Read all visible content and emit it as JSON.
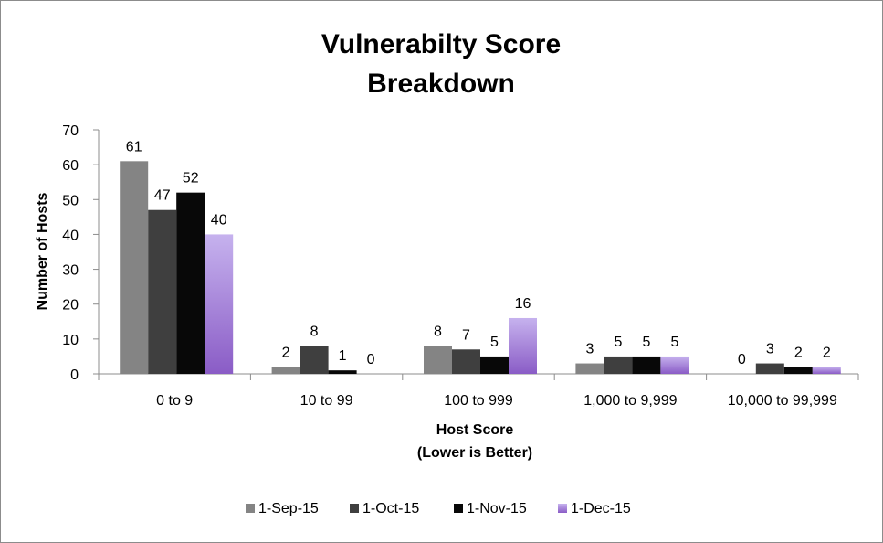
{
  "chart_data": {
    "type": "bar",
    "title_lines": [
      "Vulnerabilty Score",
      "Breakdown"
    ],
    "xlabel_lines": [
      "Host Score",
      "(Lower is Better)"
    ],
    "ylabel": "Number of Hosts",
    "ylim": [
      0,
      70
    ],
    "yticks": [
      "0",
      "10",
      "20",
      "30",
      "40",
      "50",
      "60",
      "70"
    ],
    "categories": [
      "0 to 9",
      "10 to 99",
      "100 to 999",
      "1,000 to 9,999",
      "10,000 to 99,999"
    ],
    "series": [
      {
        "name": "1-Sep-15",
        "values": [
          61,
          2,
          8,
          3,
          0
        ],
        "labels": [
          "61",
          "2",
          "8",
          "3",
          "0"
        ],
        "color": "#848484"
      },
      {
        "name": "1-Oct-15",
        "values": [
          47,
          8,
          7,
          5,
          3
        ],
        "labels": [
          "47",
          "8",
          "7",
          "5",
          "3"
        ],
        "color": "#3f3f3f"
      },
      {
        "name": "1-Nov-15",
        "values": [
          52,
          1,
          5,
          5,
          2
        ],
        "labels": [
          "52",
          "1",
          "5",
          "5",
          "2"
        ],
        "color": "#080808"
      },
      {
        "name": "1-Dec-15",
        "values": [
          40,
          0,
          16,
          5,
          2
        ],
        "labels": [
          "40",
          "0",
          "16",
          "5",
          "2"
        ],
        "color": "#a07fd6"
      }
    ],
    "grid": false,
    "legend_position": "bottom"
  }
}
